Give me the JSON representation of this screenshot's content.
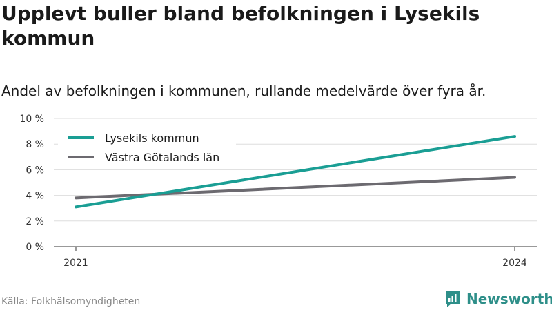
{
  "title": "Upplevt buller bland befolkningen i Lysekils kommun",
  "subtitle": "Andel av befolkningen i kommunen, rullande medelvärde över fyra år.",
  "source": "Källa: Folkhälsomyndigheten",
  "brand": "Newsworthy",
  "colors": {
    "brand": "#2e8f89"
  },
  "chart_data": {
    "type": "line",
    "x": [
      "2021",
      "2024"
    ],
    "xlabel": "",
    "ylabel": "",
    "ylim": [
      0,
      10
    ],
    "y_ticks": [
      "0 %",
      "2 %",
      "4 %",
      "6 %",
      "8 %",
      "10 %"
    ],
    "y_tick_values": [
      0,
      2,
      4,
      6,
      8,
      10
    ],
    "grid": true,
    "legend_position": "top-left",
    "series": [
      {
        "name": "Lysekils kommun",
        "color": "#1a9e94",
        "values": [
          3.1,
          8.6
        ]
      },
      {
        "name": "Västra Götalands län",
        "color": "#6c6a70",
        "values": [
          3.8,
          5.4
        ]
      }
    ]
  }
}
